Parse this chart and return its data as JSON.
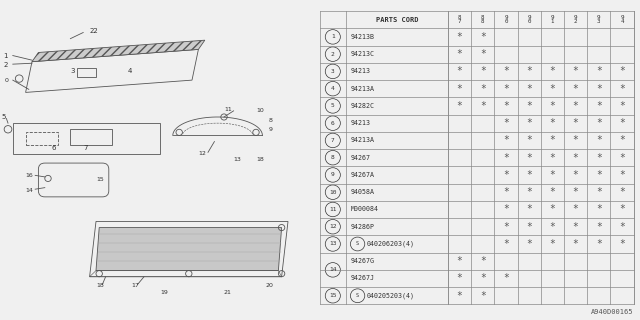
{
  "fig_id": "A940D00165",
  "bg_color": "#f0f0f0",
  "lc": "#555555",
  "tc": "#333333",
  "row_entries": [
    [
      1,
      "94213B",
      [
        1,
        1,
        0,
        0,
        0,
        0,
        0,
        0
      ]
    ],
    [
      2,
      "94213C",
      [
        1,
        1,
        0,
        0,
        0,
        0,
        0,
        0
      ]
    ],
    [
      3,
      "94213",
      [
        1,
        1,
        1,
        1,
        1,
        1,
        1,
        1
      ]
    ],
    [
      4,
      "94213A",
      [
        1,
        1,
        1,
        1,
        1,
        1,
        1,
        1
      ]
    ],
    [
      5,
      "94282C",
      [
        1,
        1,
        1,
        1,
        1,
        1,
        1,
        1
      ]
    ],
    [
      6,
      "94213",
      [
        0,
        0,
        1,
        1,
        1,
        1,
        1,
        1
      ]
    ],
    [
      7,
      "94213A",
      [
        0,
        0,
        1,
        1,
        1,
        1,
        1,
        1
      ]
    ],
    [
      8,
      "94267",
      [
        0,
        0,
        1,
        1,
        1,
        1,
        1,
        1
      ]
    ],
    [
      9,
      "94267A",
      [
        0,
        0,
        1,
        1,
        1,
        1,
        1,
        1
      ]
    ],
    [
      10,
      "94058A",
      [
        0,
        0,
        1,
        1,
        1,
        1,
        1,
        1
      ]
    ],
    [
      11,
      "M000084",
      [
        0,
        0,
        1,
        1,
        1,
        1,
        1,
        1
      ]
    ],
    [
      12,
      "94286P",
      [
        0,
        0,
        1,
        1,
        1,
        1,
        1,
        1
      ]
    ],
    [
      13,
      "S040206203(4)",
      [
        0,
        0,
        1,
        1,
        1,
        1,
        1,
        1
      ]
    ],
    [
      14,
      "94267G",
      [
        1,
        1,
        0,
        0,
        0,
        0,
        0,
        0
      ]
    ],
    [
      14,
      "94267J",
      [
        1,
        1,
        1,
        0,
        0,
        0,
        0,
        0
      ]
    ],
    [
      15,
      "S040205203(4)",
      [
        1,
        1,
        0,
        0,
        0,
        0,
        0,
        0
      ]
    ]
  ],
  "year_labels": [
    "8\n7",
    "8\n8",
    "9\n0",
    "9\n0",
    "9\n1",
    "9\n2",
    "9\n3",
    "9\n4"
  ],
  "parts_s_prefix": [
    13,
    15
  ]
}
